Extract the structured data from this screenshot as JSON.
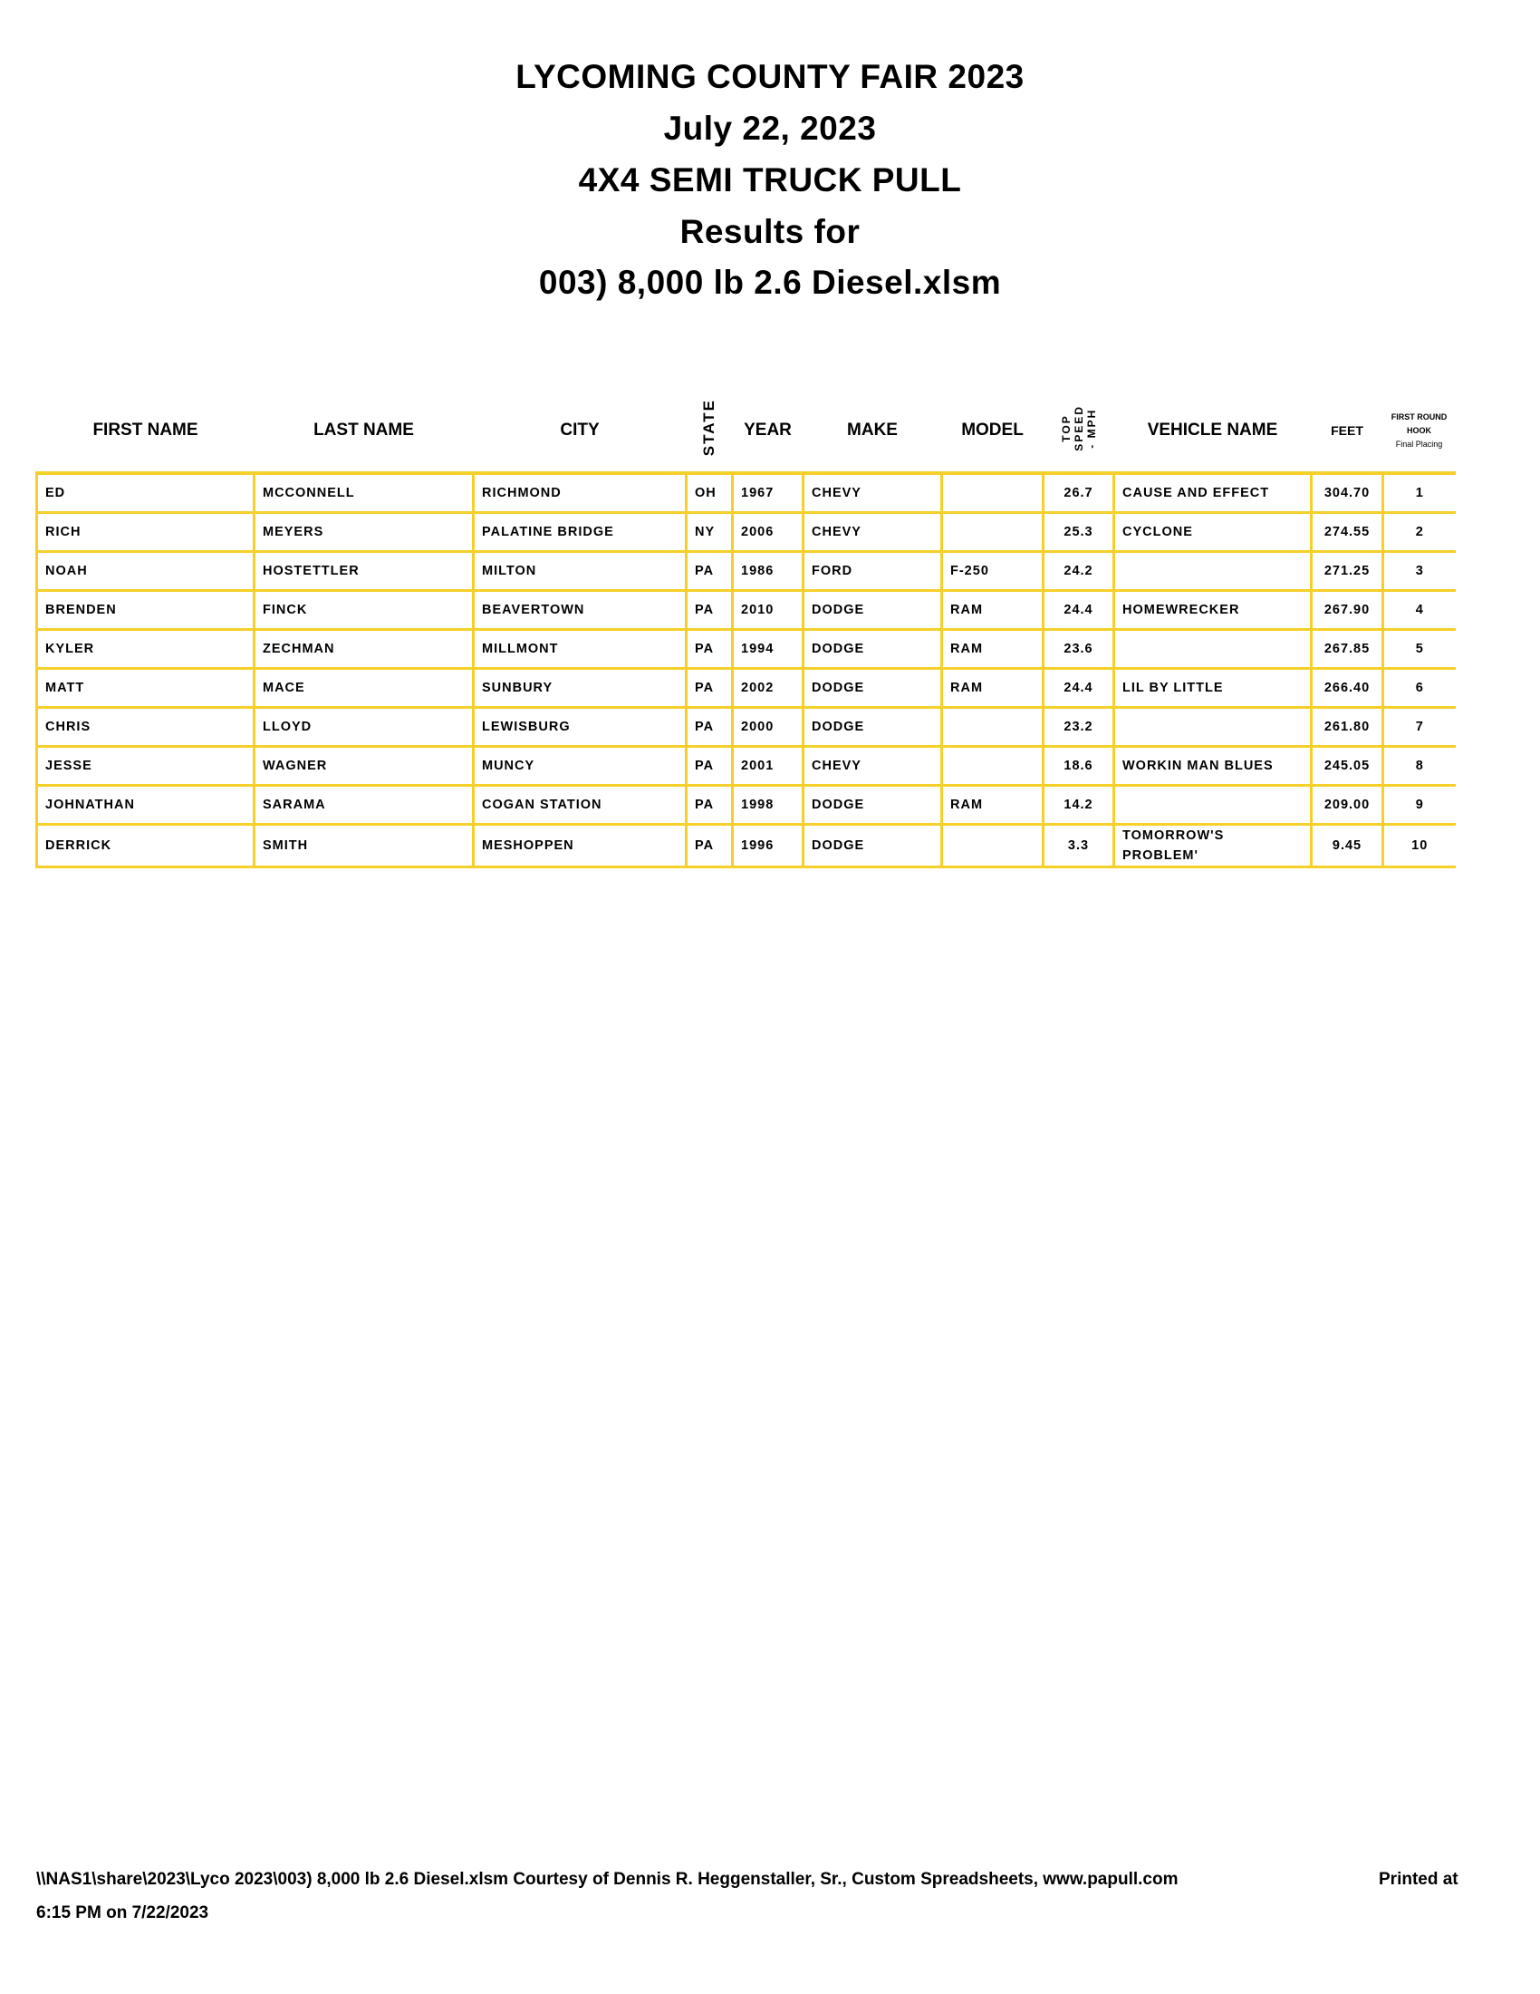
{
  "titles": [
    "LYCOMING COUNTY FAIR 2023",
    "July 22, 2023",
    "4X4 SEMI TRUCK PULL",
    "Results for",
    "003) 8,000 lb 2.6 Diesel.xlsm"
  ],
  "columns": {
    "first_name": "FIRST NAME",
    "last_name": "LAST NAME",
    "city": "CITY",
    "state": "STATE",
    "year": "YEAR",
    "make": "MAKE",
    "model": "MODEL",
    "top_speed": [
      "TOP",
      "SPEED",
      "- MPH"
    ],
    "vehicle_name": "VEHICLE NAME",
    "feet": "FEET",
    "placing": [
      "FIRST ROUND",
      "HOOK",
      "Final Placing"
    ]
  },
  "rows": [
    [
      "ED",
      "MCCONNELL",
      "RICHMOND",
      "OH",
      "1967",
      "CHEVY",
      "",
      "26.7",
      "CAUSE AND EFFECT",
      "304.70",
      "1"
    ],
    [
      "RICH",
      "MEYERS",
      "PALATINE BRIDGE",
      "NY",
      "2006",
      "CHEVY",
      "",
      "25.3",
      "CYCLONE",
      "274.55",
      "2"
    ],
    [
      "NOAH",
      "HOSTETTLER",
      "MILTON",
      "PA",
      "1986",
      "FORD",
      "F-250",
      "24.2",
      "",
      "271.25",
      "3"
    ],
    [
      "BRENDEN",
      "FINCK",
      "BEAVERTOWN",
      "PA",
      "2010",
      "DODGE",
      "RAM",
      "24.4",
      "HOMEWRECKER",
      "267.90",
      "4"
    ],
    [
      "KYLER",
      "ZECHMAN",
      "MILLMONT",
      "PA",
      "1994",
      "DODGE",
      "RAM",
      "23.6",
      "",
      "267.85",
      "5"
    ],
    [
      "MATT",
      "MACE",
      "SUNBURY",
      "PA",
      "2002",
      "DODGE",
      "RAM",
      "24.4",
      "LIL BY LITTLE",
      "266.40",
      "6"
    ],
    [
      "CHRIS",
      "LLOYD",
      "LEWISBURG",
      "PA",
      "2000",
      "DODGE",
      "",
      "23.2",
      "",
      "261.80",
      "7"
    ],
    [
      "JESSE",
      "WAGNER",
      "MUNCY",
      "PA",
      "2001",
      "CHEVY",
      "",
      "18.6",
      "WORKIN MAN BLUES",
      "245.05",
      "8"
    ],
    [
      "JOHNATHAN",
      "SARAMA",
      "COGAN STATION",
      "PA",
      "1998",
      "DODGE",
      "RAM",
      "14.2",
      "",
      "209.00",
      "9"
    ],
    [
      "DERRICK",
      "SMITH",
      "MESHOPPEN",
      "PA",
      "1996",
      "DODGE",
      "",
      "3.3",
      "TOMORROW'S PROBLEM'",
      "9.45",
      "10"
    ]
  ],
  "footer": {
    "line1": "\\\\NAS1\\share\\2023\\Lyco 2023\\003) 8,000 lb 2.6 Diesel.xlsm  Courtesy of Dennis R. Heggenstaller, Sr., Custom Spreadsheets, www.papull.com",
    "printed_at": "Printed at",
    "line2": "6:15 PM on 7/22/2023"
  },
  "colors": {
    "grid": "#f5cf2a"
  }
}
